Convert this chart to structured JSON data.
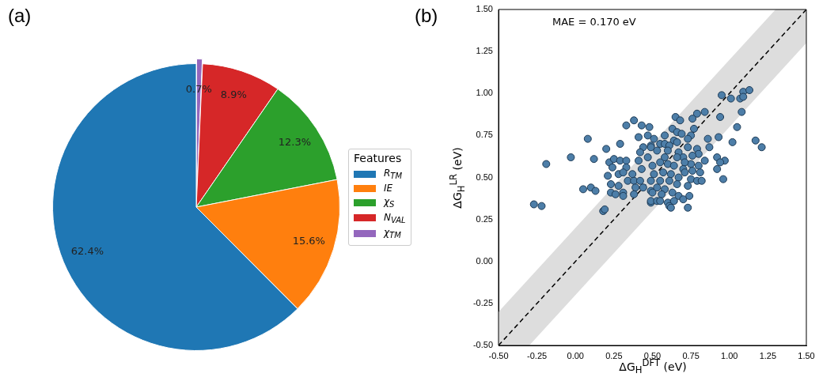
{
  "chart_data": [
    {
      "type": "pie",
      "title": "(a)",
      "legend_title": "Features",
      "legend": "right",
      "categories": [
        "R$_{TM}$",
        "IE",
        "χ$_{S}$",
        "N$_{VAL}$",
        "χ$_{TM}$"
      ],
      "values": [
        62.4,
        15.6,
        12.3,
        8.9,
        0.7
      ],
      "value_labels": [
        "62.4%",
        "15.6%",
        "12.3%",
        "8.9%",
        "0.7%"
      ],
      "colors": [
        "#1f77b4",
        "#ff7f0e",
        "#2ca02c",
        "#d62728",
        "#9467bd"
      ]
    },
    {
      "type": "scatter",
      "title": "(b)",
      "xlabel": "ΔG$_{H}$$^{DFT}$ (eV)",
      "ylabel": "ΔG$_{H}$$^{LR}$ (eV)",
      "annotations": [
        "MAE = 0.170 eV"
      ],
      "xlim": [
        -0.5,
        1.5
      ],
      "ylim": [
        -0.5,
        1.5
      ],
      "xticks": [
        {
          "value": -0.5,
          "label": "-0.50"
        },
        {
          "value": -0.25,
          "label": "-0.25"
        },
        {
          "value": 0,
          "label": "0.00"
        },
        {
          "value": 0.25,
          "label": "0.25"
        },
        {
          "value": 0.5,
          "label": "0.50"
        },
        {
          "value": 0.75,
          "label": "0.75"
        },
        {
          "value": 1,
          "label": "1.00"
        },
        {
          "value": 1.25,
          "label": "1.25"
        },
        {
          "value": 1.5,
          "label": "1.50"
        }
      ],
      "yticks": [
        {
          "value": -0.5,
          "label": "-0.50"
        },
        {
          "value": -0.25,
          "label": "-0.25"
        },
        {
          "value": 0,
          "label": "0.00"
        },
        {
          "value": 0.25,
          "label": "0.25"
        },
        {
          "value": 0.5,
          "label": "0.50"
        },
        {
          "value": 0.75,
          "label": "0.75"
        },
        {
          "value": 1,
          "label": "1.00"
        },
        {
          "value": 1.25,
          "label": "1.25"
        },
        {
          "value": 1.5,
          "label": "1.50"
        }
      ],
      "marker": "circle",
      "series": [
        {
          "type": "line",
          "color": "#000000",
          "line_style": "dashed",
          "marker": "none",
          "x": [
            -0.5,
            -0.3,
            1.3,
            1.5
          ],
          "values": [
            -0.5,
            -0.3,
            1.3,
            1.5
          ],
          "lower": [
            -0.5,
            -0.5,
            1.1,
            1.3
          ],
          "upper": [
            -0.3,
            -0.1,
            1.5,
            1.5
          ]
        },
        {
          "type": "scatter",
          "color": "#4d7ea8",
          "x": [
            -0.27,
            -0.22,
            -0.19,
            -0.03,
            0.08,
            0.05,
            0.1,
            0.13,
            0.12,
            0.2,
            0.18,
            0.19,
            0.21,
            0.22,
            0.24,
            0.25,
            0.29,
            0.29,
            0.33,
            0.33,
            0.33,
            0.38,
            0.43,
            0.48,
            0.41,
            0.47,
            0.44,
            0.49,
            0.42,
            0.47,
            0.41,
            0.23,
            0.23,
            0.26,
            0.28,
            0.31,
            0.31,
            0.28,
            0.31,
            0.34,
            0.37,
            0.38,
            0.43,
            0.42,
            0.44,
            0.39,
            0.38,
            0.49,
            0.49,
            0.49,
            0.95,
            1.01,
            1.07,
            1.09,
            1.13,
            1.09,
            1.08,
            0.94,
            0.79,
            0.84,
            0.76,
            0.65,
            0.68,
            1.05,
            1.02,
            1.17,
            1.21,
            0.93,
            0.86,
            0.87,
            0.77,
            0.63,
            0.58,
            0.66,
            0.69,
            0.75,
            0.73,
            0.64,
            0.51,
            0.55,
            0.58,
            0.61,
            0.66,
            0.73,
            0.79,
            0.8,
            0.49,
            0.53,
            0.6,
            0.67,
            0.7,
            0.76,
            0.92,
            0.97,
            0.94,
            0.92,
            0.84,
            0.8,
            0.75,
            0.71,
            0.66,
            0.58,
            0.55,
            0.5,
            0.6,
            0.64,
            0.7,
            0.76,
            0.81,
            0.51,
            0.57,
            0.62,
            0.67,
            0.71,
            0.55,
            0.61,
            0.66,
            0.75,
            0.79,
            0.82,
            0.96,
            0.73,
            0.53,
            0.58,
            0.5,
            0.56,
            0.63,
            0.67,
            0.7,
            0.74,
            0.49,
            0.53,
            0.55,
            0.6,
            0.61,
            0.62,
            0.73,
            0.64
          ],
          "values": [
            0.34,
            0.33,
            0.58,
            0.62,
            0.73,
            0.43,
            0.44,
            0.42,
            0.61,
            0.67,
            0.3,
            0.31,
            0.51,
            0.59,
            0.56,
            0.61,
            0.7,
            0.6,
            0.6,
            0.56,
            0.81,
            0.84,
            0.81,
            0.8,
            0.74,
            0.75,
            0.68,
            0.69,
            0.65,
            0.62,
            0.6,
            0.46,
            0.41,
            0.4,
            0.45,
            0.41,
            0.39,
            0.52,
            0.53,
            0.48,
            0.52,
            0.48,
            0.55,
            0.48,
            0.44,
            0.44,
            0.4,
            0.48,
            0.42,
            0.35,
            0.99,
            0.97,
            0.97,
            1.01,
            1.02,
            0.98,
            0.89,
            0.86,
            0.88,
            0.89,
            0.85,
            0.86,
            0.84,
            0.8,
            0.71,
            0.72,
            0.68,
            0.74,
            0.73,
            0.68,
            0.79,
            0.79,
            0.75,
            0.77,
            0.76,
            0.75,
            0.73,
            0.72,
            0.73,
            0.7,
            0.7,
            0.69,
            0.71,
            0.68,
            0.67,
            0.64,
            0.68,
            0.66,
            0.66,
            0.65,
            0.62,
            0.63,
            0.62,
            0.6,
            0.59,
            0.55,
            0.6,
            0.57,
            0.58,
            0.59,
            0.62,
            0.62,
            0.59,
            0.57,
            0.58,
            0.57,
            0.55,
            0.54,
            0.53,
            0.52,
            0.53,
            0.52,
            0.5,
            0.53,
            0.48,
            0.48,
            0.46,
            0.49,
            0.48,
            0.48,
            0.49,
            0.45,
            0.44,
            0.43,
            0.41,
            0.4,
            0.41,
            0.39,
            0.37,
            0.39,
            0.36,
            0.36,
            0.36,
            0.35,
            0.33,
            0.32,
            0.32,
            0.36
          ]
        }
      ]
    }
  ]
}
